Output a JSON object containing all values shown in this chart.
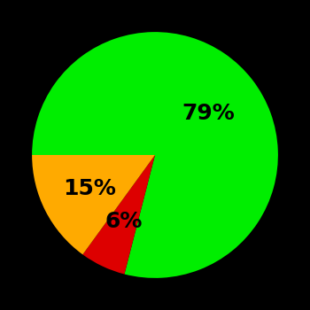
{
  "slices": [
    79,
    6,
    15
  ],
  "colors": [
    "#00ee00",
    "#dd0000",
    "#ffaa00"
  ],
  "labels": [
    "79%",
    "6%",
    "15%"
  ],
  "label_radii": [
    0.55,
    0.6,
    0.6
  ],
  "background_color": "#000000",
  "text_color": "#000000",
  "font_size": 18,
  "font_weight": "bold",
  "startangle": 180,
  "counterclock": false,
  "figsize": [
    3.5,
    3.5
  ],
  "dpi": 100
}
